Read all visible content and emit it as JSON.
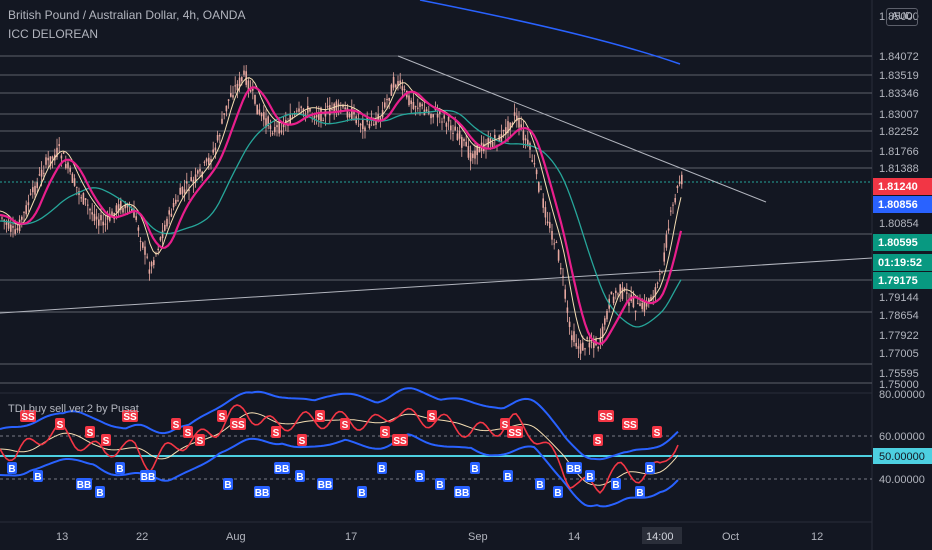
{
  "header": {
    "title": "British Pound / Australian Dollar, 4h, OANDA",
    "indicator": "ICC DELOREAN",
    "currency": "AUD"
  },
  "subpanel": {
    "title": "TDI buy sell ver.2 by Pusat"
  },
  "price_axis": {
    "top_partial": "1.85000",
    "levels": [
      "1.84072",
      "1.83519",
      "1.83346",
      "1.83007",
      "1.82252",
      "1.81766",
      "1.81388",
      "1.80854",
      "1.79144",
      "1.78654",
      "1.77922",
      "1.77005",
      "1.75595",
      "1.75000"
    ],
    "badges": [
      {
        "label": "1.81240",
        "color": "#f23645"
      },
      {
        "label": "1.80856",
        "color": "#2962ff"
      },
      {
        "label": "1.80595",
        "color": "#089981"
      },
      {
        "label": "01:19:52",
        "color": "#089981"
      },
      {
        "label": "1.79175",
        "color": "#089981"
      }
    ]
  },
  "sub_axis": [
    "80.00000",
    "60.00000",
    "50.00000",
    "40.00000"
  ],
  "time_axis": [
    "13",
    "22",
    "Aug",
    "17",
    "Sep",
    "14",
    "14:00",
    "Oct",
    "12"
  ],
  "markers": {
    "sell": "S",
    "sell_double": "SS",
    "buy": "B",
    "buy_double": "BB"
  },
  "colors": {
    "background": "#131722",
    "candle": "#e7a8a0",
    "ma_pink": "#e91e8c",
    "ma_cyan": "#26a69a",
    "ma_white": "#f5deb3",
    "band_blue": "#2962ff",
    "level_line": "#5d606b",
    "mid_line": "#4dd0e1",
    "sell": "#f23645",
    "buy": "#2962ff"
  }
}
